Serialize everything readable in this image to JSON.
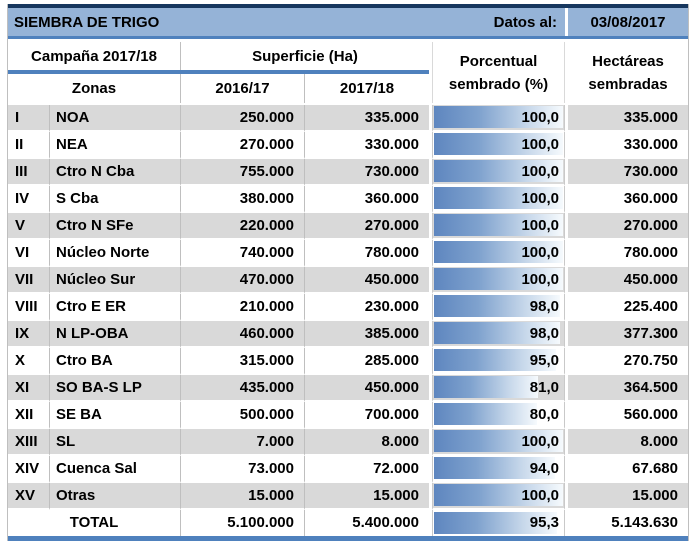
{
  "title_band": {
    "title": "SIEMBRA DE TRIGO",
    "datos_label": "Datos al:",
    "date": "03/08/2017"
  },
  "header": {
    "campaign": "Campaña 2017/18",
    "zones_label": "Zonas",
    "superficie": "Superficie (Ha)",
    "col_2016": "2016/17",
    "col_2017": "2017/18",
    "porcentual_line1": "Porcentual",
    "porcentual_line2": "sembrado (%)",
    "hectareas_line1": "Hectáreas",
    "hectareas_line2": "sembradas"
  },
  "rows": [
    {
      "num": "I",
      "zone": "NOA",
      "s2016": "250.000",
      "s2017": "335.000",
      "pct": "100,0",
      "pct_value": 100.0,
      "ha": "335.000"
    },
    {
      "num": "II",
      "zone": "NEA",
      "s2016": "270.000",
      "s2017": "330.000",
      "pct": "100,0",
      "pct_value": 100.0,
      "ha": "330.000"
    },
    {
      "num": "III",
      "zone": "Ctro N Cba",
      "s2016": "755.000",
      "s2017": "730.000",
      "pct": "100,0",
      "pct_value": 100.0,
      "ha": "730.000"
    },
    {
      "num": "IV",
      "zone": "S Cba",
      "s2016": "380.000",
      "s2017": "360.000",
      "pct": "100,0",
      "pct_value": 100.0,
      "ha": "360.000"
    },
    {
      "num": "V",
      "zone": "Ctro N SFe",
      "s2016": "220.000",
      "s2017": "270.000",
      "pct": "100,0",
      "pct_value": 100.0,
      "ha": "270.000"
    },
    {
      "num": "VI",
      "zone": "Núcleo Norte",
      "s2016": "740.000",
      "s2017": "780.000",
      "pct": "100,0",
      "pct_value": 100.0,
      "ha": "780.000"
    },
    {
      "num": "VII",
      "zone": "Núcleo Sur",
      "s2016": "470.000",
      "s2017": "450.000",
      "pct": "100,0",
      "pct_value": 100.0,
      "ha": "450.000"
    },
    {
      "num": "VIII",
      "zone": "Ctro E ER",
      "s2016": "210.000",
      "s2017": "230.000",
      "pct": "98,0",
      "pct_value": 98.0,
      "ha": "225.400"
    },
    {
      "num": "IX",
      "zone": "N LP-OBA",
      "s2016": "460.000",
      "s2017": "385.000",
      "pct": "98,0",
      "pct_value": 98.0,
      "ha": "377.300"
    },
    {
      "num": "X",
      "zone": "Ctro BA",
      "s2016": "315.000",
      "s2017": "285.000",
      "pct": "95,0",
      "pct_value": 95.0,
      "ha": "270.750"
    },
    {
      "num": "XI",
      "zone": "SO BA-S LP",
      "s2016": "435.000",
      "s2017": "450.000",
      "pct": "81,0",
      "pct_value": 81.0,
      "ha": "364.500"
    },
    {
      "num": "XII",
      "zone": "SE BA",
      "s2016": "500.000",
      "s2017": "700.000",
      "pct": "80,0",
      "pct_value": 80.0,
      "ha": "560.000"
    },
    {
      "num": "XIII",
      "zone": "SL",
      "s2016": "7.000",
      "s2017": "8.000",
      "pct": "100,0",
      "pct_value": 100.0,
      "ha": "8.000"
    },
    {
      "num": "XIV",
      "zone": "Cuenca Sal",
      "s2016": "73.000",
      "s2017": "72.000",
      "pct": "94,0",
      "pct_value": 94.0,
      "ha": "67.680"
    },
    {
      "num": "XV",
      "zone": "Otras",
      "s2016": "15.000",
      "s2017": "15.000",
      "pct": "100,0",
      "pct_value": 100.0,
      "ha": "15.000"
    }
  ],
  "total": {
    "label": "TOTAL",
    "s2016": "5.100.000",
    "s2017": "5.400.000",
    "pct": "95,3",
    "pct_value": 95.3,
    "ha": "5.143.630"
  },
  "colors": {
    "band_blue": "#95B3D7",
    "accent_blue": "#4F81BD",
    "top_border_navy": "#17375E",
    "row_stripe_gray": "#D9D9D9",
    "bar_gradient_start": "#5E86BF",
    "bar_gradient_end": "#F6FAFD",
    "grid_line": "#BFBFBF"
  }
}
